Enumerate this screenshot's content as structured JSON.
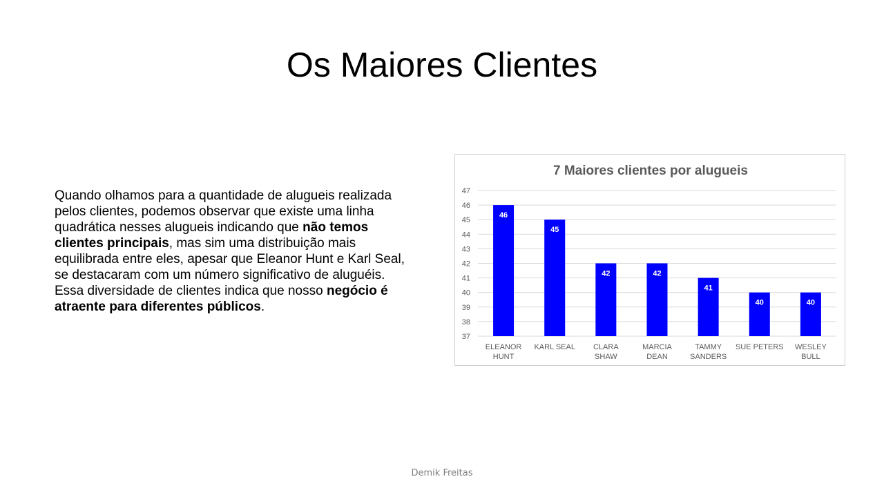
{
  "slide": {
    "title": "Os Maiores Clientes",
    "footer": "Demik Freitas"
  },
  "body": {
    "segments": [
      {
        "text": "Quando olhamos para a quantidade de alugueis realizada pelos clientes, podemos observar que existe uma linha quadrática nesses alugueis indicando que ",
        "bold": false
      },
      {
        "text": "não temos clientes principais",
        "bold": true
      },
      {
        "text": ", mas sim uma distribuição mais equilibrada entre eles, apesar que Eleanor Hunt e Karl Seal, se destacaram com um número significativo de aluguéis. Essa diversidade de clientes indica que nosso ",
        "bold": false
      },
      {
        "text": "negócio é atraente para diferentes públicos",
        "bold": true
      },
      {
        "text": ".",
        "bold": false
      }
    ]
  },
  "colors": {
    "bar": "#0000ff",
    "grid": "#d9d9d9",
    "axis_text": "#595959",
    "title_text": "#595959",
    "data_label": "#ffffff"
  },
  "chart_data": {
    "type": "bar",
    "title": "7 Maiores clientes por alugueis",
    "xlabel": "",
    "ylabel": "",
    "categories": [
      [
        "ELEANOR",
        "HUNT"
      ],
      [
        "KARL SEAL"
      ],
      [
        "CLARA",
        "SHAW"
      ],
      [
        "MARCIA",
        "DEAN"
      ],
      [
        "TAMMY",
        "SANDERS"
      ],
      [
        "SUE PETERS"
      ],
      [
        "WESLEY",
        "BULL"
      ]
    ],
    "values": [
      46,
      45,
      42,
      42,
      41,
      40,
      40
    ],
    "ylim": [
      37,
      47
    ],
    "yticks": [
      37,
      38,
      39,
      40,
      41,
      42,
      43,
      44,
      45,
      46,
      47
    ],
    "grid": true,
    "legend": "none",
    "data_labels": true
  }
}
